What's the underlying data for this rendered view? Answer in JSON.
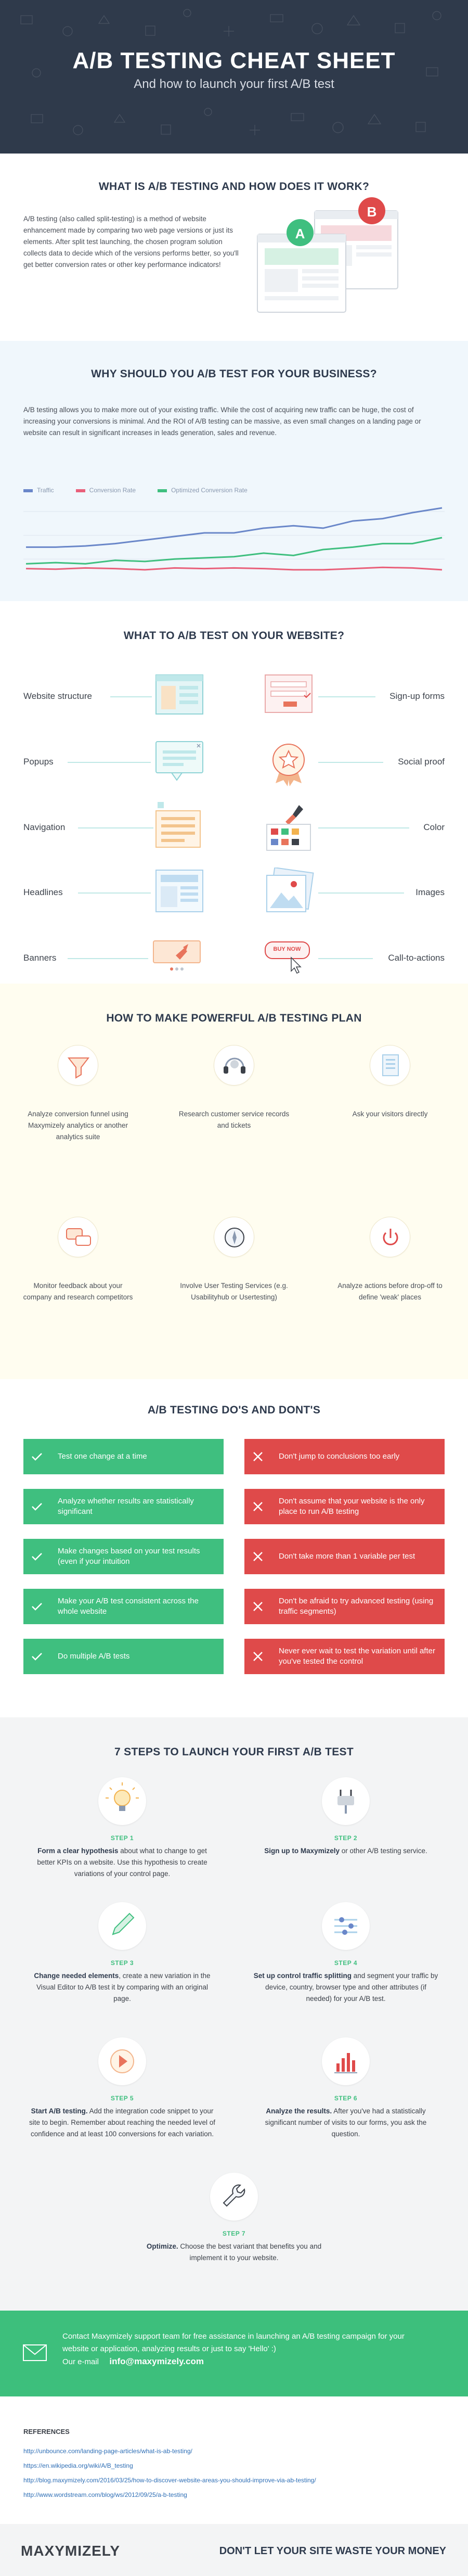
{
  "header": {
    "title": "A/B TESTING CHEAT SHEET",
    "subtitle": "And how to launch your first A/B test"
  },
  "what_is": {
    "heading": "WHAT IS A/B TESTING AND HOW DOES IT WORK?",
    "text": "A/B testing (also called split-testing) is a method of website enhancement made by comparing two web page versions or just its elements. After split test launching, the chosen program solution collects data to decide which of the versions performs better, so you'll get better conversion rates or other key performance indicators!",
    "variant_a": "A",
    "variant_b": "B"
  },
  "why": {
    "heading": "WHY SHOULD YOU A/B TEST FOR YOUR BUSINESS?",
    "text": "A/B testing allows you to make more out of your existing traffic. While the cost of acquiring new traffic can be huge, the cost of increasing your conversions is minimal. And the ROI of A/B testing can be massive, as even small changes on a landing page or website can result in significant increases in leads generation, sales and revenue."
  },
  "chart_data": {
    "type": "line",
    "title": "",
    "series": [
      {
        "name": "Traffic",
        "color": "#6a87c9",
        "values": [
          3,
          3,
          3.1,
          3.3,
          3.6,
          3.9,
          4.2,
          4.2,
          4.6,
          4.8,
          4.6,
          5.2,
          5.4,
          5.9,
          6.3
        ]
      },
      {
        "name": "Conversion Rate",
        "color": "#e9607a",
        "values": [
          1.2,
          1.15,
          1.25,
          1.2,
          1.1,
          1.25,
          1.2,
          1.25,
          1.2,
          1.1,
          1.1,
          1.2,
          1.3,
          1.25,
          1.1
        ]
      },
      {
        "name": "Optimized Conversion Rate",
        "color": "#3fbf7f",
        "values": [
          1.6,
          1.7,
          1.6,
          1.9,
          1.8,
          2.0,
          2.1,
          2.2,
          2.5,
          2.3,
          2.8,
          3.0,
          3.3,
          3.3,
          3.8
        ]
      }
    ],
    "grid": true,
    "legend": "top-left"
  },
  "what_to_test": {
    "heading": "WHAT TO A/B TEST ON YOUR WEBSITE?",
    "left": [
      "Website structure",
      "Popups",
      "Navigation",
      "Headlines",
      "Banners"
    ],
    "right": [
      "Sign-up forms",
      "Social proof",
      "Color",
      "Images",
      "Call-to-actions"
    ],
    "cta_mock": "BUY NOW"
  },
  "plan": {
    "heading": "HOW TO MAKE POWERFUL A/B TESTING PLAN",
    "items": [
      {
        "icon": "funnel-icon",
        "text": "Analyze conversion funnel using Maxymizely analytics or another analytics suite"
      },
      {
        "icon": "headset-icon",
        "text": "Research customer service records and tickets"
      },
      {
        "icon": "survey-icon",
        "text": "Ask your visitors directly"
      },
      {
        "icon": "chat-bubbles-icon",
        "text": "Monitor feedback about your company and research competitors"
      },
      {
        "icon": "compass-icon",
        "text": "Involve User Testing Services (e.g. Usabilityhub or Usertesting)"
      },
      {
        "icon": "power-icon",
        "text": "Analyze actions before drop-off to define 'weak' places"
      }
    ]
  },
  "dos_donts": {
    "heading": "A/B TESTING DO'S AND DONT'S",
    "dos": [
      "Test one change at a time",
      "Analyze whether results are statistically significant",
      "Make changes based on your test results (even if your intuition",
      "Make your A/B test consistent across the whole website",
      "Do multiple A/B tests"
    ],
    "donts": [
      "Don't jump to conclusions too early",
      "Don't assume that your website is the only place to run A/B testing",
      "Don't take more than 1 variable per test",
      "Don't be afraid to try advanced testing (using traffic segments)",
      "Never ever wait to test the variation until after you've tested the control"
    ]
  },
  "steps": {
    "heading": "7 STEPS TO LAUNCH YOUR FIRST A/B TEST",
    "items": [
      {
        "label": "STEP 1",
        "icon": "lightbulb-icon",
        "bold": "Form a clear hypothesis",
        "text": " about what to change to get better KPIs on a website. Use this hypothesis to create variations of your control page."
      },
      {
        "label": "STEP 2",
        "icon": "plug-icon",
        "bold": "Sign up to Maxymizely",
        "text": " or other A/B testing service."
      },
      {
        "label": "STEP 3",
        "icon": "pencil-icon",
        "bold": "Change needed elements",
        "text": ", create a new variation in the Visual Editor to A/B test it by comparing with an original page."
      },
      {
        "label": "STEP 4",
        "icon": "sliders-icon",
        "bold": "Set up control traffic splitting",
        "text": " and segment your traffic by device, country, browser type and other attributes (if needed) for your A/B test."
      },
      {
        "label": "STEP 5",
        "icon": "play-icon",
        "bold": "Start A/B testing.",
        "text": " Add the integration code snippet to your site to begin. Remember about reaching the needed level of confidence and at least 100 conversions for each variation."
      },
      {
        "label": "STEP 6",
        "icon": "bar-chart-icon",
        "bold": "Analyze the results.",
        "text": " After you've had a statistically significant number of visits to our forms, you ask the question."
      },
      {
        "label": "STEP 7",
        "icon": "wrench-icon",
        "bold": "Optimize.",
        "text": " Choose the best variant that benefits you and implement it to your website."
      }
    ]
  },
  "contact": {
    "text": "Contact Maxymizely support team for free assistance in launching an A/B testing campaign for your website or application, analyzing results or just to say 'Hello' :)",
    "email_label": "Our e-mail",
    "email": "info@maxymizely.com"
  },
  "references": {
    "heading": "REFERENCES",
    "links": [
      "http://unbounce.com/landing-page-articles/what-is-ab-testing/",
      "https://en.wikipedia.org/wiki/A/B_testing",
      "http://blog.maxymizely.com/2016/03/25/how-to-discover-website-areas-you-should-improve-via-ab-testing/",
      "http://www.wordstream.com/blog/ws/2012/09/25/a-b-testing"
    ]
  },
  "footer": {
    "logo": "MAXYMIZELY",
    "tagline": "DON'T LET YOUR SITE WASTE YOUR MONEY"
  }
}
